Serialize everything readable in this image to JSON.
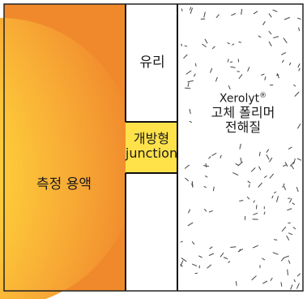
{
  "labels": {
    "solution": "측정 용액",
    "glass": "유리",
    "junction_line1": "개방형",
    "junction_line2": "junction",
    "electrolyte_brand": "Xerolyt",
    "electrolyte_mark": "®",
    "electrolyte_line2": "고체 폴리머",
    "electrolyte_line3": "전해질"
  },
  "colors": {
    "solution_outer": "#f08a2a",
    "solution_inner": "#ffe64a",
    "junction_fill": "#ffe24a",
    "glass_fill": "#ffffff",
    "outline": "#111111",
    "particles": "#444444"
  }
}
